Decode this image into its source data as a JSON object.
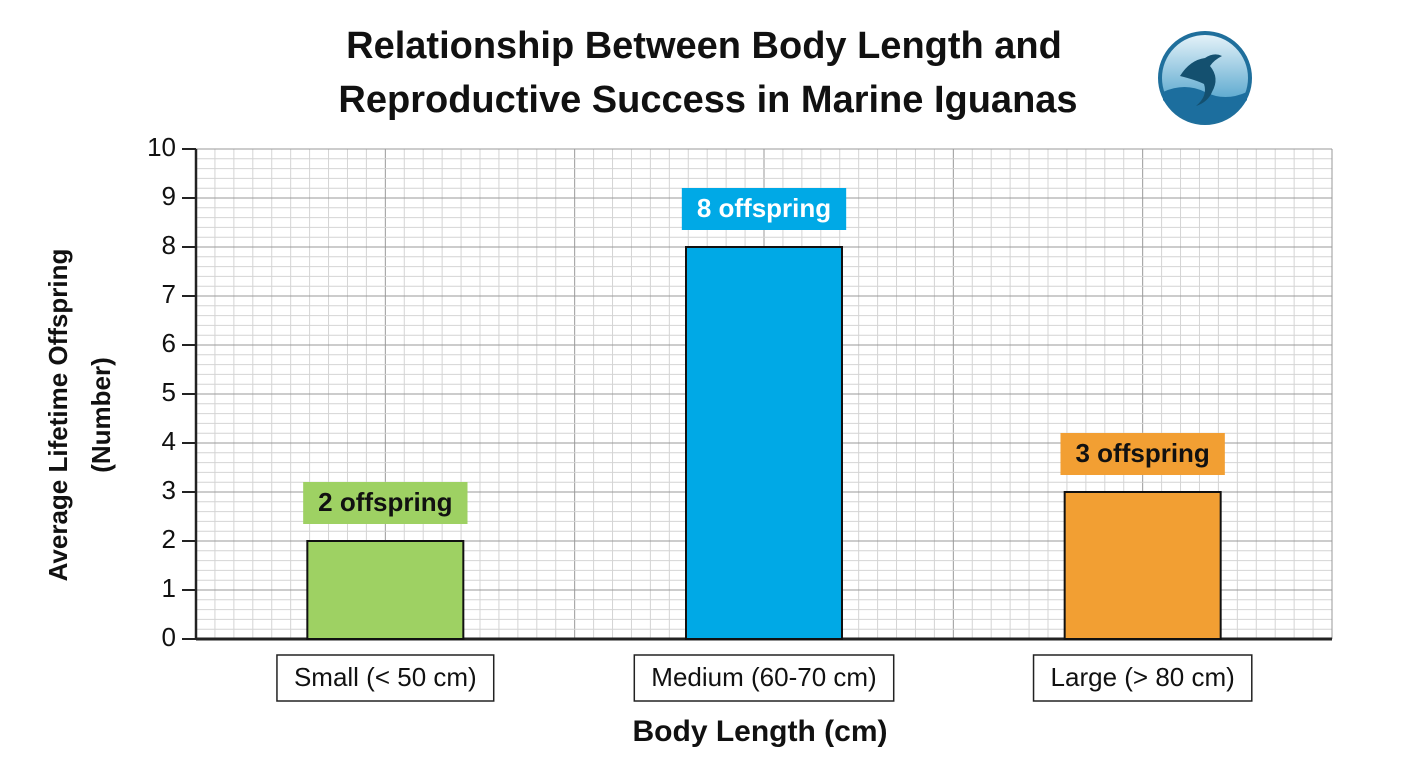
{
  "chart_data": {
    "type": "bar",
    "title": [
      "Relationship Between Body Length and",
      "Reproductive Success in Marine Iguanas"
    ],
    "x_label": "Body Length (cm)",
    "y_label": [
      "Average Lifetime Offspring",
      "(Number)"
    ],
    "categories": [
      "Small (< 50 cm)",
      "Medium (60-70 cm)",
      "Large (> 80 cm)"
    ],
    "values": [
      2,
      8,
      3
    ],
    "value_labels": [
      "2 offspring",
      "8 offspring",
      "3 offspring"
    ],
    "colors": [
      "#9ed163",
      "#00a9e6",
      "#f29f33"
    ],
    "label_text_colors": [
      "#111111",
      "#ffffff",
      "#111111"
    ],
    "ylim": [
      0,
      10
    ],
    "yticks": [
      0,
      1,
      2,
      3,
      4,
      5,
      6,
      7,
      8,
      9,
      10
    ],
    "grid": true
  }
}
